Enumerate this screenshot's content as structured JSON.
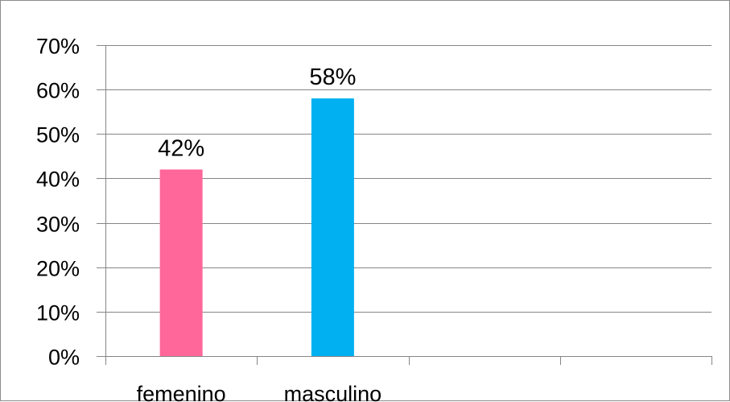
{
  "chart_data": {
    "type": "bar",
    "categories": [
      "femenino",
      "masculino",
      "",
      ""
    ],
    "values": [
      0.42,
      0.58,
      null,
      null
    ],
    "data_labels": [
      "42%",
      "58%",
      "",
      ""
    ],
    "ylim": [
      0,
      0.7
    ],
    "yticks": [
      0,
      0.1,
      0.2,
      0.3,
      0.4,
      0.5,
      0.6,
      0.7
    ],
    "ytick_labels": [
      "0%",
      "10%",
      "20%",
      "30%",
      "40%",
      "50%",
      "60%",
      "70%"
    ],
    "grid": "horizontal",
    "legend": "none",
    "colors": [
      "#ff6699",
      "#00b0f0"
    ],
    "gridline_color": "#868686",
    "title": "",
    "xlabel": "",
    "ylabel": ""
  }
}
